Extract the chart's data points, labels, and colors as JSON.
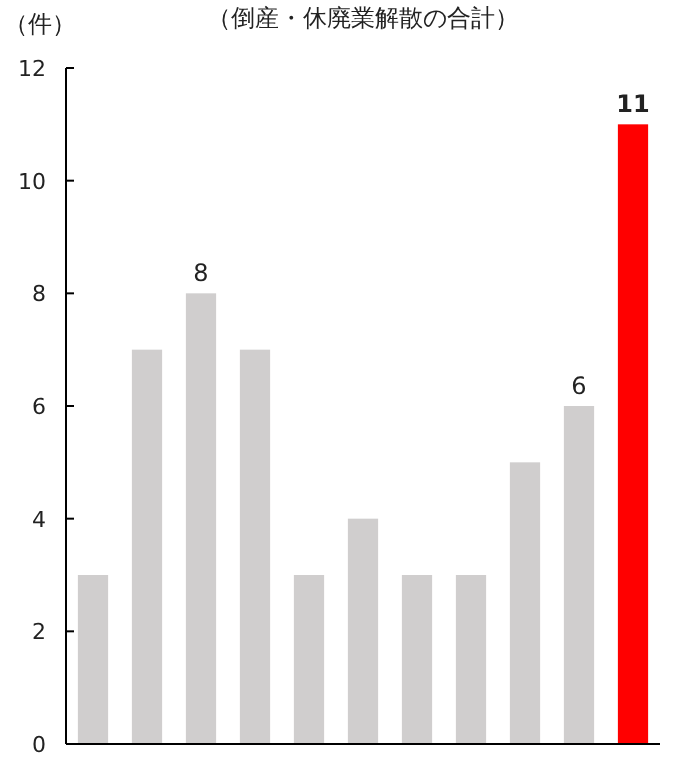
{
  "chart_data": {
    "type": "bar",
    "title": "（倒産・休廃業解散の合計）",
    "ylabel": "（件）",
    "categories": [
      null,
      null,
      null,
      null,
      null,
      null,
      null,
      null,
      null,
      null,
      null
    ],
    "values": [
      3,
      7,
      8,
      7,
      3,
      4,
      3,
      3,
      5,
      6,
      11
    ],
    "colors": [
      "#d0cece",
      "#d0cece",
      "#d0cece",
      "#d0cece",
      "#d0cece",
      "#d0cece",
      "#d0cece",
      "#d0cece",
      "#d0cece",
      "#d0cece",
      "#ff0000"
    ],
    "value_labels": [
      null,
      null,
      "8",
      null,
      null,
      null,
      null,
      null,
      null,
      "6",
      "11"
    ],
    "ylim": [
      0,
      12
    ],
    "yticks": [
      0,
      2,
      4,
      6,
      8,
      10,
      12
    ]
  }
}
